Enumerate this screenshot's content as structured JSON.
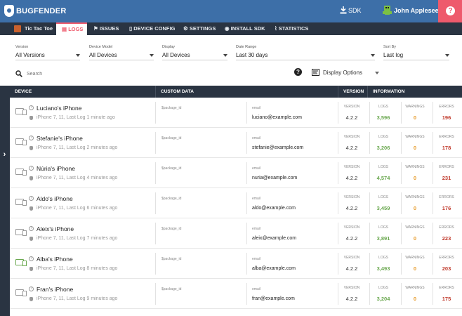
{
  "topbar": {
    "brand": "BUGFENDER",
    "sdk_label": "SDK",
    "user_name": "John Appleseed",
    "help_label": "?"
  },
  "nav": {
    "app_name": "Tic Tac Toe",
    "tabs": [
      {
        "label": "LOGS",
        "active": true
      },
      {
        "label": "ISSUES"
      },
      {
        "label": "DEVICE CONFIG"
      },
      {
        "label": "SETTINGS"
      },
      {
        "label": "INSTALL SDK"
      },
      {
        "label": "STATISTICS"
      }
    ]
  },
  "filters": {
    "version": {
      "label": "Version",
      "value": "All Versions"
    },
    "device_model": {
      "label": "Device Model",
      "value": "All Devices"
    },
    "display": {
      "label": "Display",
      "value": "All Devices"
    },
    "date_range": {
      "label": "Date Range",
      "value": "Last 30 days"
    },
    "sort_by": {
      "label": "Sort By",
      "value": "Last log"
    }
  },
  "search": {
    "placeholder": "Search"
  },
  "display_options": "Display Options",
  "table": {
    "headers": {
      "device": "DEVICE",
      "custom_data": "CUSTOM DATA",
      "version": "VERSION",
      "information": "INFORMATION"
    },
    "rows": [
      {
        "name": "Luciano's iPhone",
        "sub": "iPhone 7, 11, Last Log 1 minute ago",
        "package_key": "$package_id",
        "email_key": "email",
        "email": "luciano@example.com",
        "version_label": "VERSION",
        "version": "4.2.2",
        "logs_label": "LOGS",
        "logs": "3,596",
        "warnings_label": "WARNINGS",
        "warnings": "0",
        "errors_label": "ERRORS",
        "errors": "196"
      },
      {
        "name": "Stefanie's iPhone",
        "sub": "iPhone 7, 11, Last Log 2 minutes ago",
        "package_key": "$package_id",
        "email_key": "email",
        "email": "stefanie@example.com",
        "version_label": "VERSION",
        "version": "4.2.2",
        "logs_label": "LOGS",
        "logs": "3,206",
        "warnings_label": "WARNINGS",
        "warnings": "0",
        "errors_label": "ERRORS",
        "errors": "178"
      },
      {
        "name": "Núria's iPhone",
        "sub": "iPhone 7, 11, Last Log 4 minutes ago",
        "package_key": "$package_id",
        "email_key": "email",
        "email": "nuria@example.com",
        "version_label": "VERSION",
        "version": "4.2.2",
        "logs_label": "LOGS",
        "logs": "4,574",
        "warnings_label": "WARNINGS",
        "warnings": "0",
        "errors_label": "ERRORS",
        "errors": "231"
      },
      {
        "name": "Aldo's iPhone",
        "sub": "iPhone 7, 11, Last Log 6 minutes ago",
        "package_key": "$package_id",
        "email_key": "email",
        "email": "aldo@example.com",
        "version_label": "VERSION",
        "version": "4.2.2",
        "logs_label": "LOGS",
        "logs": "3,459",
        "warnings_label": "WARNINGS",
        "warnings": "0",
        "errors_label": "ERRORS",
        "errors": "176"
      },
      {
        "name": "Aleix's iPhone",
        "sub": "iPhone 7, 11, Last Log 7 minutes ago",
        "package_key": "$package_id",
        "email_key": "email",
        "email": "aleix@example.com",
        "version_label": "VERSION",
        "version": "4.2.2",
        "logs_label": "LOGS",
        "logs": "3,891",
        "warnings_label": "WARNINGS",
        "warnings": "0",
        "errors_label": "ERRORS",
        "errors": "223"
      },
      {
        "name": "Alba's iPhone",
        "sub": "iPhone 7, 11, Last Log 8 minutes ago",
        "package_key": "$package_id",
        "email_key": "email",
        "email": "alba@example.com",
        "version_label": "VERSION",
        "version": "4.2.2",
        "logs_label": "LOGS",
        "logs": "3,493",
        "warnings_label": "WARNINGS",
        "warnings": "0",
        "errors_label": "ERRORS",
        "errors": "203",
        "icon_color": "green"
      },
      {
        "name": "Fran's iPhone",
        "sub": "iPhone 7, 11, Last Log 9 minutes ago",
        "package_key": "$package_id",
        "email_key": "email",
        "email": "fran@example.com",
        "version_label": "VERSION",
        "version": "4.2.2",
        "logs_label": "LOGS",
        "logs": "3,204",
        "warnings_label": "WARNINGS",
        "warnings": "0",
        "errors_label": "ERRORS",
        "errors": "175"
      }
    ]
  },
  "colors": {
    "topbar": "#3d6fa8",
    "nav": "#2a3442",
    "accent": "#ee5a6c",
    "logs": "#6aa84f",
    "warnings": "#e69a28",
    "errors": "#c0392b"
  }
}
